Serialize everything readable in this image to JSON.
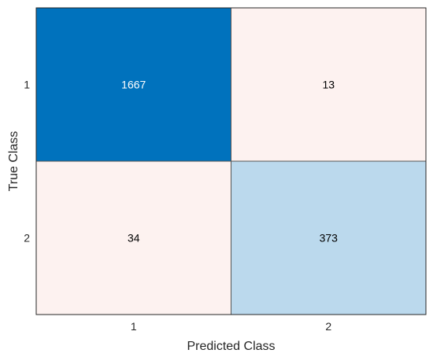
{
  "chart_data": {
    "type": "heatmap",
    "title": "",
    "xlabel": "Predicted Class",
    "ylabel": "True Class",
    "x_categories": [
      "1",
      "2"
    ],
    "y_categories": [
      "1",
      "2"
    ],
    "values": [
      [
        1667,
        13
      ],
      [
        34,
        373
      ]
    ],
    "colors": {
      "high": "#0072bd",
      "medium": "#bbd9ed",
      "low": "#fdf2f0",
      "label_on_dark": "#ffffff",
      "label_on_light": "#000000",
      "axis": "#262626",
      "grid_border": "#555555"
    }
  }
}
